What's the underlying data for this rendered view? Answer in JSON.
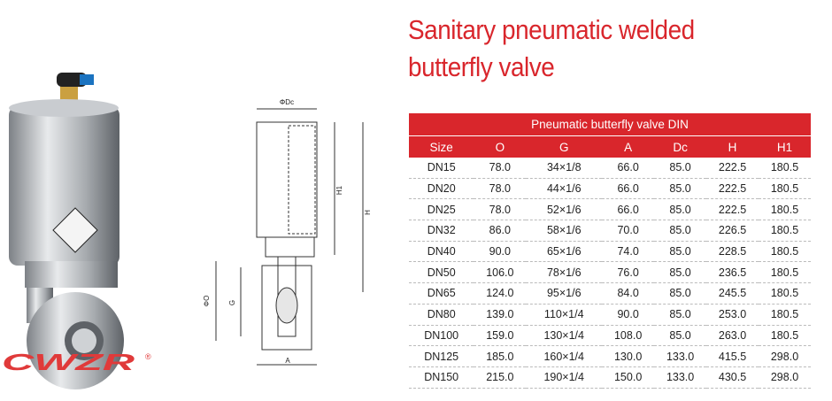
{
  "logo": {
    "text": "CWZR",
    "mark": "®"
  },
  "drawing": {
    "labels": {
      "dc": "ΦDc",
      "h1": "H1",
      "h": "H",
      "o": "ΦO",
      "g": "G",
      "a": "A"
    }
  },
  "header": {
    "title_lines": [
      "Sanitary pneumatic welded",
      "butterfly valve"
    ]
  },
  "table": {
    "caption": "Pneumatic butterfly valve DIN",
    "columns": [
      "Size",
      "O",
      "G",
      "A",
      "Dc",
      "H",
      "H1"
    ],
    "rows": [
      [
        "DN15",
        "78.0",
        "34×1/8",
        "66.0",
        "85.0",
        "222.5",
        "180.5"
      ],
      [
        "DN20",
        "78.0",
        "44×1/6",
        "66.0",
        "85.0",
        "222.5",
        "180.5"
      ],
      [
        "DN25",
        "78.0",
        "52×1/6",
        "66.0",
        "85.0",
        "222.5",
        "180.5"
      ],
      [
        "DN32",
        "86.0",
        "58×1/6",
        "70.0",
        "85.0",
        "226.5",
        "180.5"
      ],
      [
        "DN40",
        "90.0",
        "65×1/6",
        "74.0",
        "85.0",
        "228.5",
        "180.5"
      ],
      [
        "DN50",
        "106.0",
        "78×1/6",
        "76.0",
        "85.0",
        "236.5",
        "180.5"
      ],
      [
        "DN65",
        "124.0",
        "95×1/6",
        "84.0",
        "85.0",
        "245.5",
        "180.5"
      ],
      [
        "DN80",
        "139.0",
        "110×1/4",
        "90.0",
        "85.0",
        "253.0",
        "180.5"
      ],
      [
        "DN100",
        "159.0",
        "130×1/4",
        "108.0",
        "85.0",
        "263.0",
        "180.5"
      ],
      [
        "DN125",
        "185.0",
        "160×1/4",
        "130.0",
        "133.0",
        "415.5",
        "298.0"
      ],
      [
        "DN150",
        "215.0",
        "190×1/4",
        "150.0",
        "133.0",
        "430.5",
        "298.0"
      ]
    ]
  }
}
